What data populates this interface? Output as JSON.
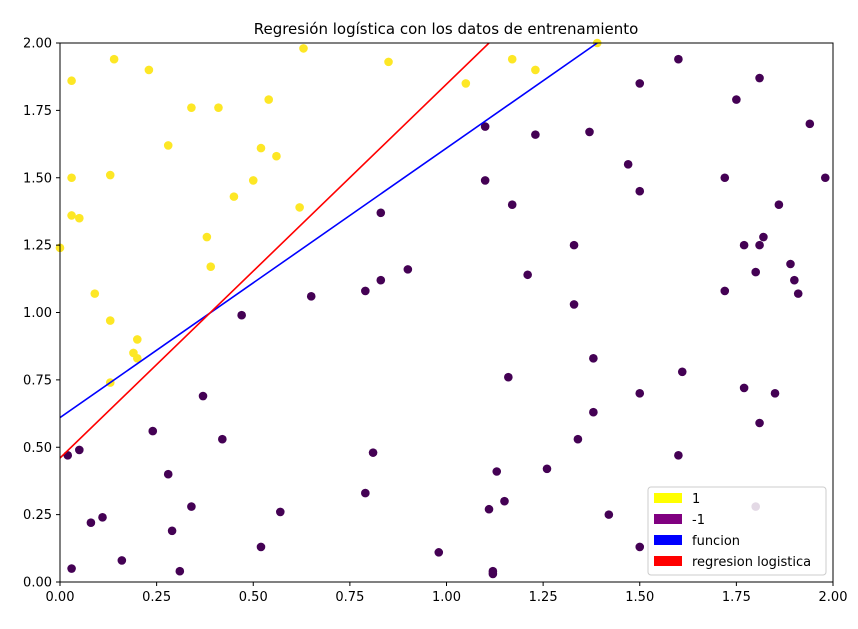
{
  "chart_data": {
    "type": "scatter",
    "title": "Regresión logística con los datos de entrenamiento",
    "xlabel": "",
    "ylabel": "",
    "xlim": [
      0.0,
      2.0
    ],
    "ylim": [
      0.0,
      2.0
    ],
    "x_ticks": [
      "0.00",
      "0.25",
      "0.50",
      "0.75",
      "1.00",
      "1.25",
      "1.50",
      "1.75",
      "2.00"
    ],
    "y_ticks": [
      "0.00",
      "0.25",
      "0.50",
      "0.75",
      "1.00",
      "1.25",
      "1.50",
      "1.75",
      "2.00"
    ],
    "grid": false,
    "legend_position": "bottom-right",
    "legend": [
      {
        "label": "1",
        "color": "#ffff00"
      },
      {
        "label": "-1",
        "color": "#800080"
      },
      {
        "label": "funcion",
        "color": "#0000ff"
      },
      {
        "label": "regresion logistica",
        "color": "#ff0000"
      }
    ],
    "series": [
      {
        "name": "1",
        "color": "#fde725",
        "points": [
          [
            0.03,
            1.86
          ],
          [
            0.14,
            1.94
          ],
          [
            0.23,
            1.9
          ],
          [
            0.34,
            1.76
          ],
          [
            0.41,
            1.76
          ],
          [
            0.54,
            1.79
          ],
          [
            0.63,
            1.98
          ],
          [
            0.85,
            1.93
          ],
          [
            1.05,
            1.85
          ],
          [
            1.17,
            1.94
          ],
          [
            1.23,
            1.9
          ],
          [
            1.39,
            2.0
          ],
          [
            0.28,
            1.62
          ],
          [
            0.52,
            1.61
          ],
          [
            0.56,
            1.58
          ],
          [
            0.03,
            1.5
          ],
          [
            0.13,
            1.51
          ],
          [
            0.5,
            1.49
          ],
          [
            0.45,
            1.43
          ],
          [
            0.62,
            1.39
          ],
          [
            0.03,
            1.36
          ],
          [
            0.05,
            1.35
          ],
          [
            0.0,
            1.24
          ],
          [
            0.38,
            1.28
          ],
          [
            0.39,
            1.17
          ],
          [
            0.09,
            1.07
          ],
          [
            0.13,
            0.97
          ],
          [
            0.2,
            0.9
          ],
          [
            0.19,
            0.85
          ],
          [
            0.2,
            0.83
          ],
          [
            0.13,
            0.74
          ]
        ]
      },
      {
        "name": "-1",
        "color": "#440154",
        "points": [
          [
            1.6,
            1.94
          ],
          [
            1.81,
            1.87
          ],
          [
            1.5,
            1.85
          ],
          [
            1.75,
            1.79
          ],
          [
            1.94,
            1.7
          ],
          [
            1.1,
            1.69
          ],
          [
            1.37,
            1.67
          ],
          [
            1.23,
            1.66
          ],
          [
            1.47,
            1.55
          ],
          [
            1.1,
            1.49
          ],
          [
            1.72,
            1.5
          ],
          [
            1.98,
            1.5
          ],
          [
            1.5,
            1.45
          ],
          [
            1.17,
            1.4
          ],
          [
            1.86,
            1.4
          ],
          [
            0.83,
            1.37
          ],
          [
            1.82,
            1.28
          ],
          [
            1.33,
            1.25
          ],
          [
            1.77,
            1.25
          ],
          [
            1.81,
            1.25
          ],
          [
            1.89,
            1.18
          ],
          [
            0.9,
            1.16
          ],
          [
            1.21,
            1.14
          ],
          [
            1.8,
            1.15
          ],
          [
            0.83,
            1.12
          ],
          [
            1.9,
            1.12
          ],
          [
            0.79,
            1.08
          ],
          [
            1.72,
            1.08
          ],
          [
            1.91,
            1.07
          ],
          [
            0.65,
            1.06
          ],
          [
            1.33,
            1.03
          ],
          [
            0.47,
            0.99
          ],
          [
            1.38,
            0.83
          ],
          [
            1.61,
            0.78
          ],
          [
            1.16,
            0.76
          ],
          [
            1.77,
            0.72
          ],
          [
            0.37,
            0.69
          ],
          [
            1.5,
            0.7
          ],
          [
            1.85,
            0.7
          ],
          [
            1.38,
            0.63
          ],
          [
            1.81,
            0.59
          ],
          [
            0.24,
            0.56
          ],
          [
            0.42,
            0.53
          ],
          [
            1.34,
            0.53
          ],
          [
            0.05,
            0.49
          ],
          [
            0.02,
            0.47
          ],
          [
            0.81,
            0.48
          ],
          [
            1.6,
            0.47
          ],
          [
            1.26,
            0.42
          ],
          [
            1.13,
            0.41
          ],
          [
            0.28,
            0.4
          ],
          [
            0.79,
            0.33
          ],
          [
            1.15,
            0.3
          ],
          [
            0.34,
            0.28
          ],
          [
            1.11,
            0.27
          ],
          [
            1.8,
            0.28
          ],
          [
            0.57,
            0.26
          ],
          [
            1.42,
            0.25
          ],
          [
            0.11,
            0.24
          ],
          [
            0.08,
            0.22
          ],
          [
            0.29,
            0.19
          ],
          [
            0.52,
            0.13
          ],
          [
            1.5,
            0.13
          ],
          [
            0.98,
            0.11
          ],
          [
            0.16,
            0.08
          ],
          [
            0.03,
            0.05
          ],
          [
            0.31,
            0.04
          ],
          [
            1.12,
            0.04
          ],
          [
            1.12,
            0.03
          ]
        ]
      }
    ],
    "lines": [
      {
        "name": "funcion",
        "color": "#0000ff",
        "points": [
          [
            0.0,
            0.61
          ],
          [
            1.39,
            2.0
          ]
        ]
      },
      {
        "name": "regresion logistica",
        "color": "#ff0000",
        "points": [
          [
            0.0,
            0.46
          ],
          [
            1.11,
            2.0
          ]
        ]
      }
    ]
  }
}
